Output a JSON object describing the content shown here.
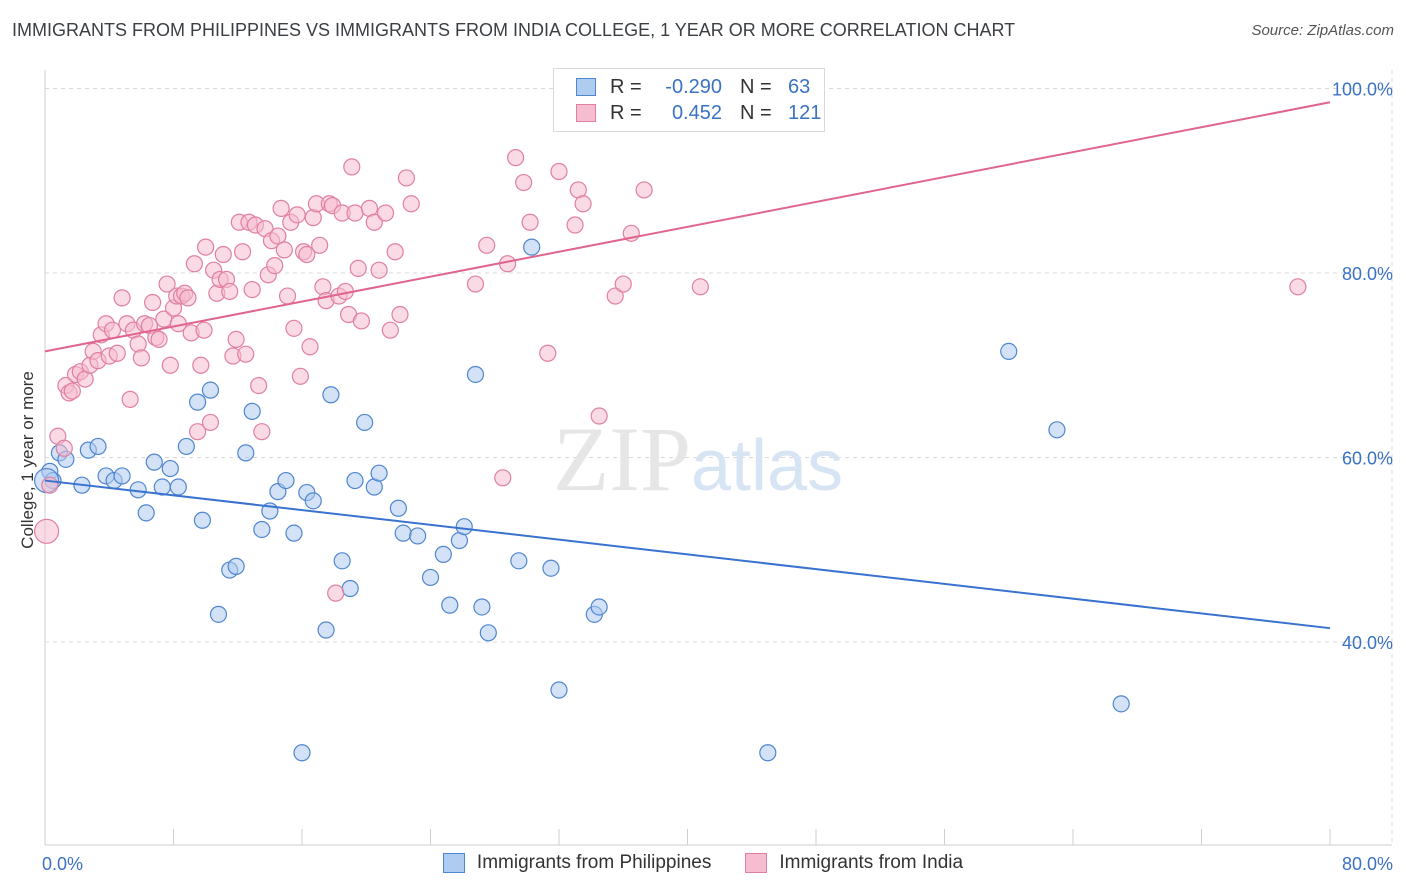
{
  "header": {
    "title": "IMMIGRANTS FROM PHILIPPINES VS IMMIGRANTS FROM INDIA COLLEGE, 1 YEAR OR MORE CORRELATION CHART",
    "source": "Source: ZipAtlas.com"
  },
  "watermark": "ZIPatlas",
  "legend": {
    "rows": [
      {
        "r_label": "R =",
        "r_value": "-0.290",
        "n_label": "N =",
        "n_value": "63"
      },
      {
        "r_label": "R =",
        "r_value": "0.452",
        "n_label": "N =",
        "n_value": "121"
      }
    ]
  },
  "colors": {
    "philippines_fill": "#aecbf0",
    "philippines_stroke": "#4f86cf",
    "philippines_line": "#3a72d0",
    "india_fill": "#f6bcd0",
    "india_stroke": "#e07fa2",
    "india_line": "#e0658e",
    "grid": "#d8d8d8",
    "axis_label": "#3a72c4"
  },
  "chart_data": {
    "type": "scatter",
    "title": "IMMIGRANTS FROM PHILIPPINES VS IMMIGRANTS FROM INDIA COLLEGE, 1 YEAR OR MORE CORRELATION CHART",
    "xlabel": "",
    "ylabel": "College, 1 year or more",
    "xlim": [
      0,
      80
    ],
    "ylim": [
      18,
      102
    ],
    "x_tick_labels": [
      "0.0%",
      "80.0%"
    ],
    "y_ticks": [
      40,
      60,
      80,
      100
    ],
    "y_tick_labels": [
      "40.0%",
      "60.0%",
      "80.0%",
      "100.0%"
    ],
    "grid": true,
    "legend_position": "top-center",
    "series": [
      {
        "name": "Immigrants from Philippines",
        "r": -0.29,
        "n": 63,
        "trend": {
          "x": [
            0,
            80
          ],
          "y": [
            57.5,
            41.5
          ]
        },
        "points": [
          [
            0.3,
            58.5
          ],
          [
            0.5,
            57.5
          ],
          [
            0.9,
            60.5
          ],
          [
            1.3,
            59.8
          ],
          [
            2.3,
            57
          ],
          [
            2.7,
            60.8
          ],
          [
            3.3,
            61.2
          ],
          [
            3.8,
            58
          ],
          [
            4.3,
            57.5
          ],
          [
            4.8,
            58
          ],
          [
            5.8,
            56.5
          ],
          [
            6.3,
            54
          ],
          [
            6.8,
            59.5
          ],
          [
            7.3,
            56.8
          ],
          [
            7.8,
            58.8
          ],
          [
            8.3,
            56.8
          ],
          [
            8.8,
            61.2
          ],
          [
            9.5,
            66
          ],
          [
            9.8,
            53.2
          ],
          [
            10.3,
            67.3
          ],
          [
            10.8,
            43
          ],
          [
            11.5,
            47.8
          ],
          [
            11.9,
            48.2
          ],
          [
            12.5,
            60.5
          ],
          [
            12.9,
            65
          ],
          [
            13.5,
            52.2
          ],
          [
            14,
            54.2
          ],
          [
            14.5,
            56.3
          ],
          [
            15,
            57.5
          ],
          [
            15.5,
            51.8
          ],
          [
            16,
            28
          ],
          [
            16.3,
            56.2
          ],
          [
            16.7,
            55.3
          ],
          [
            17.5,
            41.3
          ],
          [
            17.8,
            66.8
          ],
          [
            18.5,
            48.8
          ],
          [
            19,
            45.8
          ],
          [
            19.3,
            57.5
          ],
          [
            19.9,
            63.8
          ],
          [
            20.5,
            56.8
          ],
          [
            20.8,
            58.3
          ],
          [
            22,
            54.5
          ],
          [
            22.3,
            51.8
          ],
          [
            23.2,
            51.5
          ],
          [
            24,
            47
          ],
          [
            24.8,
            49.5
          ],
          [
            25.2,
            44
          ],
          [
            25.8,
            51
          ],
          [
            26.1,
            52.5
          ],
          [
            26.8,
            69
          ],
          [
            27.2,
            43.8
          ],
          [
            27.6,
            41
          ],
          [
            29.5,
            48.8
          ],
          [
            30.3,
            82.8
          ],
          [
            31.5,
            48
          ],
          [
            32,
            34.8
          ],
          [
            34.2,
            43
          ],
          [
            34.5,
            43.8
          ],
          [
            45,
            28
          ],
          [
            60,
            71.5
          ],
          [
            63,
            63
          ],
          [
            67,
            33.3
          ],
          [
            0.1,
            57.5
          ]
        ]
      },
      {
        "name": "Immigrants from India",
        "r": 0.452,
        "n": 121,
        "trend": {
          "x": [
            0,
            80
          ],
          "y": [
            71.5,
            98.5
          ]
        },
        "points": [
          [
            0.1,
            52
          ],
          [
            0.3,
            57
          ],
          [
            0.8,
            62.3
          ],
          [
            1.2,
            61
          ],
          [
            1.3,
            67.8
          ],
          [
            1.5,
            67
          ],
          [
            1.7,
            67.2
          ],
          [
            1.9,
            69
          ],
          [
            2.2,
            69.3
          ],
          [
            2.5,
            68.5
          ],
          [
            2.8,
            70
          ],
          [
            3,
            71.5
          ],
          [
            3.3,
            70.5
          ],
          [
            3.5,
            73.3
          ],
          [
            3.8,
            74.5
          ],
          [
            4,
            71
          ],
          [
            4.2,
            73.8
          ],
          [
            4.5,
            71.3
          ],
          [
            4.8,
            77.3
          ],
          [
            5.1,
            74.5
          ],
          [
            5.3,
            66.3
          ],
          [
            5.5,
            73.8
          ],
          [
            5.8,
            72.3
          ],
          [
            6,
            70.8
          ],
          [
            6.2,
            74.5
          ],
          [
            6.5,
            74.3
          ],
          [
            6.7,
            76.8
          ],
          [
            6.9,
            73
          ],
          [
            7.1,
            72.8
          ],
          [
            7.4,
            75
          ],
          [
            7.6,
            78.8
          ],
          [
            7.8,
            70
          ],
          [
            8,
            76.2
          ],
          [
            8.2,
            77.5
          ],
          [
            8.3,
            74.5
          ],
          [
            8.5,
            77.5
          ],
          [
            8.7,
            77.8
          ],
          [
            8.9,
            77.3
          ],
          [
            9.1,
            73.5
          ],
          [
            9.3,
            81
          ],
          [
            9.5,
            62.8
          ],
          [
            9.7,
            70
          ],
          [
            9.9,
            73.8
          ],
          [
            10,
            82.8
          ],
          [
            10.3,
            63.8
          ],
          [
            10.5,
            80.3
          ],
          [
            10.7,
            77.8
          ],
          [
            10.9,
            79.3
          ],
          [
            11.1,
            82
          ],
          [
            11.3,
            79.3
          ],
          [
            11.5,
            78
          ],
          [
            11.7,
            71
          ],
          [
            11.9,
            72.8
          ],
          [
            12.1,
            85.5
          ],
          [
            12.3,
            82.3
          ],
          [
            12.5,
            71.2
          ],
          [
            12.7,
            85.5
          ],
          [
            12.9,
            78.2
          ],
          [
            13.1,
            85.2
          ],
          [
            13.3,
            67.8
          ],
          [
            13.5,
            62.8
          ],
          [
            13.7,
            84.8
          ],
          [
            13.9,
            79.8
          ],
          [
            14.1,
            83.5
          ],
          [
            14.3,
            80.8
          ],
          [
            14.5,
            84
          ],
          [
            14.7,
            87
          ],
          [
            14.9,
            82.5
          ],
          [
            15.1,
            77.5
          ],
          [
            15.3,
            85.5
          ],
          [
            15.5,
            74
          ],
          [
            15.7,
            86.3
          ],
          [
            15.9,
            68.8
          ],
          [
            16.1,
            82.3
          ],
          [
            16.3,
            82
          ],
          [
            16.5,
            72
          ],
          [
            16.7,
            86
          ],
          [
            16.9,
            87.5
          ],
          [
            17.1,
            83
          ],
          [
            17.3,
            78.5
          ],
          [
            17.5,
            77
          ],
          [
            17.7,
            87.5
          ],
          [
            17.9,
            87.3
          ],
          [
            18.1,
            45.3
          ],
          [
            18.3,
            77.5
          ],
          [
            18.5,
            86.5
          ],
          [
            18.7,
            78
          ],
          [
            18.9,
            75.5
          ],
          [
            19.1,
            91.5
          ],
          [
            19.3,
            86.5
          ],
          [
            19.5,
            80.5
          ],
          [
            19.7,
            74.8
          ],
          [
            20.2,
            87
          ],
          [
            20.5,
            85.5
          ],
          [
            20.8,
            80.3
          ],
          [
            21.2,
            86.5
          ],
          [
            21.5,
            73.8
          ],
          [
            21.8,
            82.3
          ],
          [
            22.1,
            75.5
          ],
          [
            22.5,
            90.3
          ],
          [
            22.8,
            87.5
          ],
          [
            26.8,
            78.8
          ],
          [
            27.5,
            83
          ],
          [
            28.5,
            57.8
          ],
          [
            28.8,
            81
          ],
          [
            29.3,
            92.5
          ],
          [
            29.8,
            89.8
          ],
          [
            30.2,
            85.5
          ],
          [
            31.3,
            71.3
          ],
          [
            32,
            91
          ],
          [
            33,
            85.2
          ],
          [
            33.2,
            89
          ],
          [
            33.5,
            87.5
          ],
          [
            34.5,
            64.5
          ],
          [
            35.5,
            77.5
          ],
          [
            36,
            78.8
          ],
          [
            36.5,
            84.3
          ],
          [
            37.3,
            89
          ],
          [
            40.8,
            78.5
          ],
          [
            78,
            78.5
          ]
        ]
      }
    ]
  },
  "bottom_legend": {
    "items": [
      "Immigrants from Philippines",
      "Immigrants from India"
    ]
  }
}
